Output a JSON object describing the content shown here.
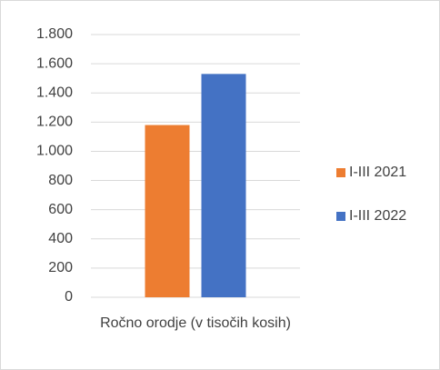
{
  "chart_data": {
    "type": "bar",
    "categories": [
      "Ročno orodje (v tisočih kosih)"
    ],
    "series": [
      {
        "name": "I-III 2021",
        "color": "#ed7d31",
        "values": [
          1180
        ]
      },
      {
        "name": "I-III 2022",
        "color": "#4472c4",
        "values": [
          1530
        ]
      }
    ],
    "ylim": [
      0,
      1800
    ],
    "yticks": [
      0,
      200,
      400,
      600,
      800,
      {
        "value": 1000,
        "label": "1.000"
      },
      {
        "value": 1200,
        "label": "1.200"
      },
      {
        "value": 1400,
        "label": "1.400"
      },
      {
        "value": 1600,
        "label": "1.600"
      },
      {
        "value": 1800,
        "label": "1.800"
      }
    ],
    "grid": true,
    "legend": "right"
  }
}
